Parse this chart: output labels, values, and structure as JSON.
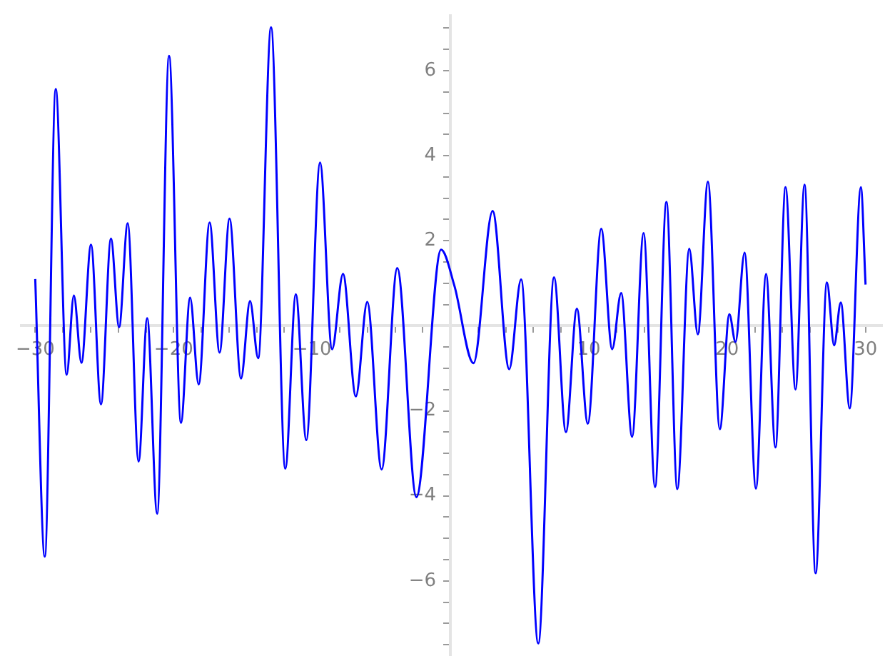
{
  "chart_data": {
    "type": "line",
    "x": [
      -30,
      -29.31,
      -28.52,
      -27.73,
      -27.21,
      -26.66,
      -25.97,
      -25.25,
      -24.53,
      -23.94,
      -23.32,
      -22.53,
      -21.91,
      -21.19,
      -20.33,
      -19.47,
      -18.81,
      -18.19,
      -17.4,
      -16.68,
      -15.96,
      -15.13,
      -14.48,
      -13.89,
      -12.96,
      -11.93,
      -11.17,
      -10.41,
      -9.42,
      -8.55,
      -7.76,
      -6.83,
      -6.01,
      -4.97,
      -3.84,
      -2.46,
      -0.67,
      0.29,
      1.67,
      3.05,
      4.25,
      5.11,
      6.35,
      7.49,
      8.35,
      9.14,
      9.93,
      10.9,
      11.69,
      12.34,
      13.13,
      13.96,
      14.79,
      15.61,
      16.4,
      17.26,
      17.88,
      18.61,
      19.47,
      20.16,
      20.6,
      21.26,
      22.08,
      22.81,
      23.49,
      24.22,
      24.94,
      25.59,
      26.39,
      27.21,
      27.73,
      28.21,
      28.86,
      29.66,
      30
    ],
    "series": [
      {
        "color": "#0000ff",
        "values": [
          1.1,
          -5.43,
          5.57,
          -1.15,
          0.71,
          -0.87,
          1.91,
          -1.85,
          2.05,
          -0.03,
          2.41,
          -3.19,
          0.18,
          -4.42,
          6.35,
          -2.28,
          0.66,
          -1.38,
          2.43,
          -0.63,
          2.52,
          -1.24,
          0.58,
          -0.76,
          7.02,
          -3.36,
          0.74,
          -2.69,
          3.84,
          -0.55,
          1.22,
          -1.66,
          0.56,
          -3.38,
          1.36,
          -4.03,
          1.79,
          0.94,
          -0.88,
          2.7,
          -1.02,
          1.09,
          -7.47,
          1.14,
          -2.5,
          0.4,
          -2.3,
          2.28,
          -0.55,
          0.77,
          -2.61,
          2.18,
          -3.79,
          2.91,
          -3.84,
          1.81,
          -0.2,
          3.39,
          -2.43,
          0.27,
          -0.38,
          1.72,
          -3.83,
          1.22,
          -2.86,
          3.26,
          -1.5,
          3.32,
          -5.82,
          1.02,
          -0.46,
          0.55,
          -1.94,
          3.26,
          0.97
        ]
      }
    ],
    "xlim": [
      -31,
      31.2
    ],
    "ylim": [
      -7.75,
      7.3
    ],
    "xticks": [
      -30,
      {
        "value": -28,
        "label": null
      },
      {
        "value": -26,
        "label": null
      },
      {
        "value": -24,
        "label": null
      },
      {
        "value": -22,
        "label": null
      },
      -20,
      {
        "value": -18,
        "label": null
      },
      {
        "value": -16,
        "label": null
      },
      {
        "value": -14,
        "label": null
      },
      {
        "value": -12,
        "label": null
      },
      -10,
      {
        "value": -8,
        "label": null
      },
      {
        "value": -6,
        "label": null
      },
      {
        "value": -4,
        "label": null
      },
      {
        "value": -2,
        "label": null
      },
      {
        "value": 2,
        "label": null
      },
      {
        "value": 4,
        "label": null
      },
      {
        "value": 6,
        "label": null
      },
      {
        "value": 8,
        "label": null
      },
      10,
      {
        "value": 12,
        "label": null
      },
      {
        "value": 14,
        "label": null
      },
      {
        "value": 16,
        "label": null
      },
      {
        "value": 18,
        "label": null
      },
      20,
      {
        "value": 22,
        "label": null
      },
      {
        "value": 24,
        "label": null
      },
      {
        "value": 26,
        "label": null
      },
      {
        "value": 28,
        "label": null
      },
      30
    ],
    "yticks": [
      {
        "value": -7.5,
        "label": null
      },
      {
        "value": -7,
        "label": null
      },
      {
        "value": -6.5,
        "label": null
      },
      -6,
      {
        "value": -5.5,
        "label": null
      },
      {
        "value": -5,
        "label": null
      },
      {
        "value": -4.5,
        "label": null
      },
      -4,
      {
        "value": -3.5,
        "label": null
      },
      {
        "value": -3,
        "label": null
      },
      {
        "value": -2.5,
        "label": null
      },
      -2,
      {
        "value": -1.5,
        "label": null
      },
      {
        "value": -1,
        "label": null
      },
      {
        "value": -0.5,
        "label": null
      },
      {
        "value": 0.5,
        "label": null
      },
      {
        "value": 1,
        "label": null
      },
      {
        "value": 1.5,
        "label": null
      },
      2,
      {
        "value": 2.5,
        "label": null
      },
      {
        "value": 3,
        "label": null
      },
      {
        "value": 3.5,
        "label": null
      },
      4,
      {
        "value": 4.5,
        "label": null
      },
      {
        "value": 5,
        "label": null
      },
      {
        "value": 5.5,
        "label": null
      },
      6,
      {
        "value": 6.5,
        "label": null
      },
      {
        "value": 7,
        "label": null
      }
    ],
    "marker": "none",
    "line_style": "solid"
  }
}
